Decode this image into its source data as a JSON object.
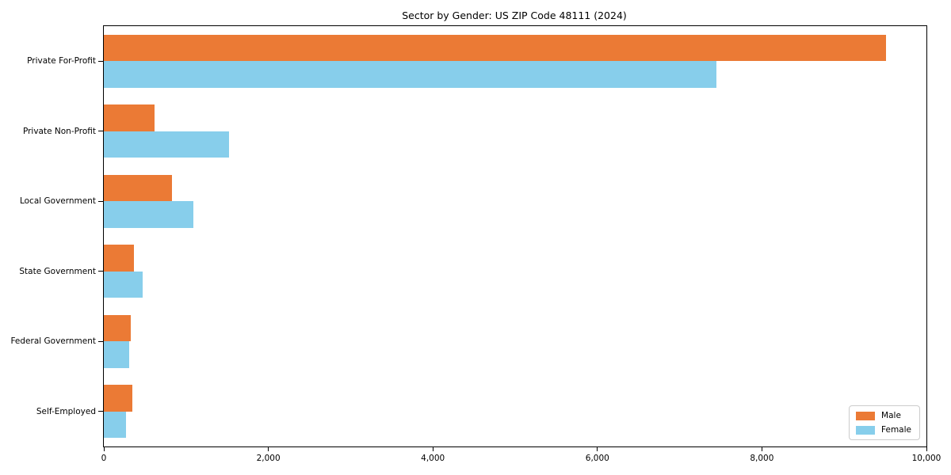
{
  "chart_data": {
    "type": "bar",
    "orientation": "horizontal",
    "title": "Sector by Gender: US ZIP Code 48111 (2024)",
    "categories": [
      "Private For-Profit",
      "Private Non-Profit",
      "Local Government",
      "State Government",
      "Federal Government",
      "Self-Employed"
    ],
    "series": [
      {
        "name": "Male",
        "color": "#EB7A35",
        "values": [
          9510,
          620,
          830,
          370,
          330,
          350
        ]
      },
      {
        "name": "Female",
        "color": "#87CEEB",
        "values": [
          7450,
          1520,
          1090,
          470,
          310,
          270
        ]
      }
    ],
    "xlabel": "",
    "ylabel": "",
    "xlim": [
      0,
      10000
    ],
    "xticks": [
      0,
      2000,
      4000,
      6000,
      8000,
      10000
    ],
    "xtick_labels": [
      "0",
      "2,000",
      "4,000",
      "6,000",
      "8,000",
      "10,000"
    ],
    "grid": false,
    "legend": {
      "position": "lower right",
      "entries": [
        "Male",
        "Female"
      ]
    },
    "colors": {
      "axis": "#000000",
      "background": "#ffffff",
      "legend_border": "#cccccc"
    }
  }
}
